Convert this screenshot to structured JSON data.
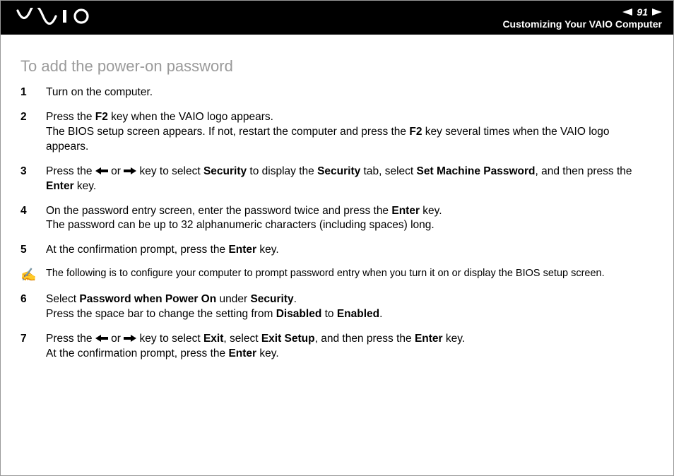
{
  "colors": {
    "header_bg": "#000000",
    "header_fg": "#ffffff",
    "title_color": "#9a9a9a",
    "body_text": "#000000",
    "page_bg": "#ffffff",
    "nav_arrow_fill": "#ffffff",
    "inline_arrow_fill": "#000000"
  },
  "typography": {
    "body_fontsize": 15.5,
    "title_fontsize": 22,
    "note_fontsize": 14.5,
    "page_num_fontsize": 14,
    "breadcrumb_fontsize": 14,
    "font_family": "Arial, Helvetica, sans-serif"
  },
  "header": {
    "page_number": "91",
    "breadcrumb": "Customizing Your VAIO Computer",
    "logo_alt": "VAIO"
  },
  "section": {
    "title": "To add the power-on password"
  },
  "note": {
    "icon": "✍",
    "text": "The following is to configure your computer to prompt password entry when you turn it on or display the BIOS setup screen."
  },
  "steps": [
    {
      "n": "1",
      "segments": [
        [
          {
            "t": "Turn on the computer."
          }
        ]
      ]
    },
    {
      "n": "2",
      "segments": [
        [
          {
            "t": "Press the "
          },
          {
            "t": "F2",
            "b": true
          },
          {
            "t": " key when the VAIO logo appears."
          }
        ],
        [
          {
            "t": "The BIOS setup screen appears. If not, restart the computer and press the "
          },
          {
            "t": "F2",
            "b": true
          },
          {
            "t": " key several times when the VAIO logo appears."
          }
        ]
      ]
    },
    {
      "n": "3",
      "segments": [
        [
          {
            "t": "Press the "
          },
          {
            "arrow": "left"
          },
          {
            "t": " or "
          },
          {
            "arrow": "right"
          },
          {
            "t": " key to select "
          },
          {
            "t": "Security",
            "b": true
          },
          {
            "t": " to display the "
          },
          {
            "t": "Security",
            "b": true
          },
          {
            "t": " tab, select "
          },
          {
            "t": "Set Machine Password",
            "b": true
          },
          {
            "t": ", and then press the "
          },
          {
            "t": "Enter",
            "b": true
          },
          {
            "t": " key."
          }
        ]
      ]
    },
    {
      "n": "4",
      "segments": [
        [
          {
            "t": "On the password entry screen, enter the password twice and press the "
          },
          {
            "t": "Enter",
            "b": true
          },
          {
            "t": " key."
          }
        ],
        [
          {
            "t": "The password can be up to 32 alphanumeric characters (including spaces) long."
          }
        ]
      ]
    },
    {
      "n": "5",
      "segments": [
        [
          {
            "t": "At the confirmation prompt, press the "
          },
          {
            "t": "Enter",
            "b": true
          },
          {
            "t": " key."
          }
        ]
      ]
    },
    {
      "n": "6",
      "segments": [
        [
          {
            "t": "Select "
          },
          {
            "t": "Password when Power On",
            "b": true
          },
          {
            "t": " under "
          },
          {
            "t": "Security",
            "b": true
          },
          {
            "t": "."
          }
        ],
        [
          {
            "t": "Press the space bar to change the setting from "
          },
          {
            "t": "Disabled",
            "b": true
          },
          {
            "t": " to "
          },
          {
            "t": "Enabled",
            "b": true
          },
          {
            "t": "."
          }
        ]
      ]
    },
    {
      "n": "7",
      "segments": [
        [
          {
            "t": "Press the "
          },
          {
            "arrow": "left"
          },
          {
            "t": " or "
          },
          {
            "arrow": "right"
          },
          {
            "t": " key to select "
          },
          {
            "t": "Exit",
            "b": true
          },
          {
            "t": ", select "
          },
          {
            "t": "Exit Setup",
            "b": true
          },
          {
            "t": ", and then press the "
          },
          {
            "t": "Enter",
            "b": true
          },
          {
            "t": " key."
          }
        ],
        [
          {
            "t": "At the confirmation prompt, press the "
          },
          {
            "t": "Enter",
            "b": true
          },
          {
            "t": " key."
          }
        ]
      ]
    }
  ]
}
